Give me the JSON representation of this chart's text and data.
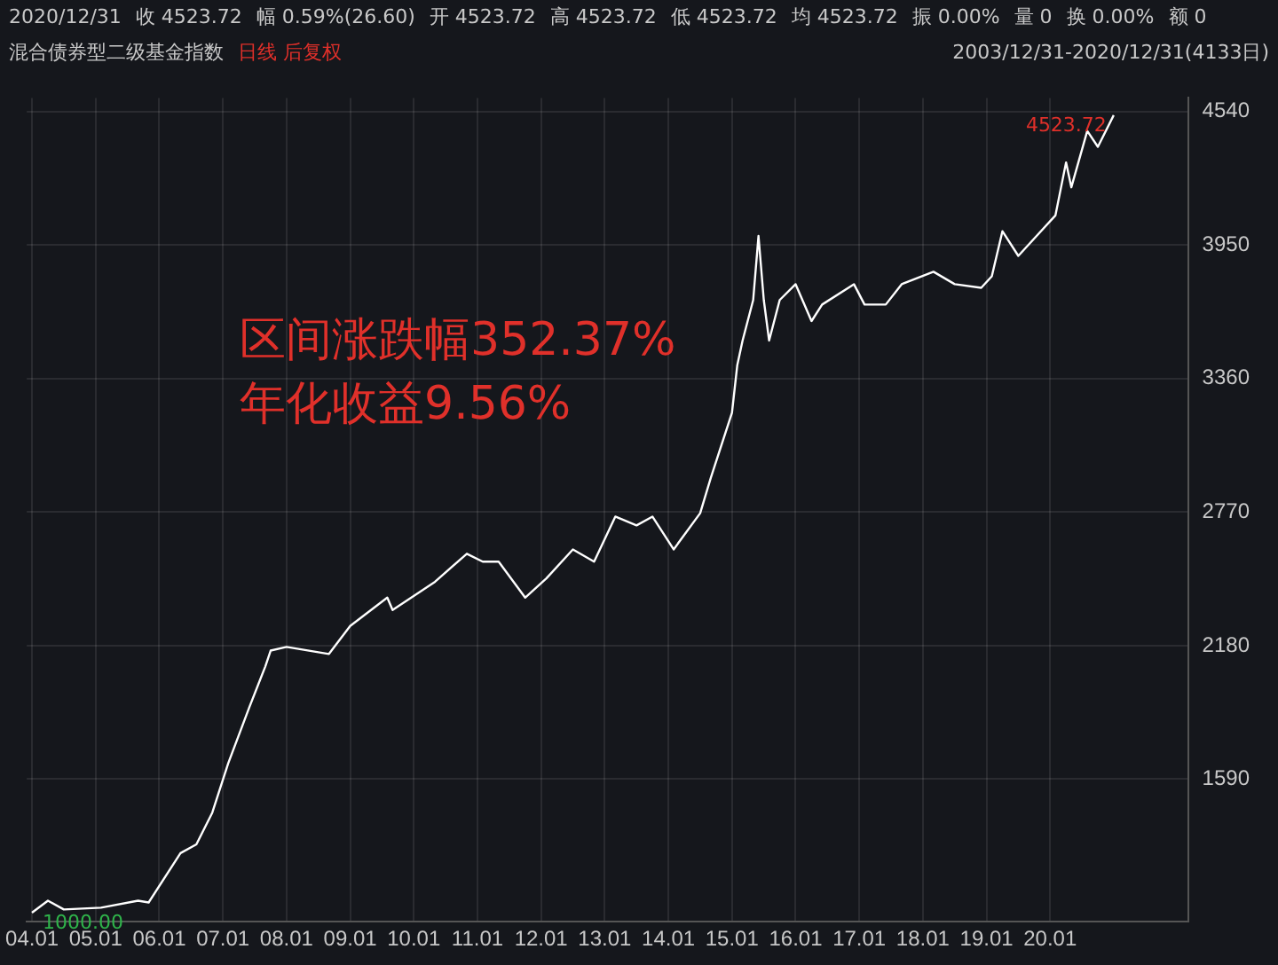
{
  "chart_data": {
    "type": "line",
    "title": "混合债券型二级基金指数",
    "subtitle": "日线 后复权",
    "annotations": [
      "2020/12/31",
      "收 4523.72",
      "幅 0.59%(26.60)",
      "开 4523.72",
      "高 4523.72",
      "低 4523.72",
      "均 4523.72",
      "振 0.00%",
      "量 0",
      "换 0.00%",
      "额 0",
      "2003/12/31-2020/12/31(4133日)",
      "区间涨跌幅352.37%",
      "年化收益9.56%",
      {
        "text": "4523.72",
        "x": "2020-12-31",
        "y": 4523.72
      },
      {
        "text": "1000.00",
        "x": "2003-12-31",
        "y": 1000
      }
    ],
    "x": [
      "2003-12-31",
      "2004-04",
      "2004-07",
      "2005-02",
      "2005-09",
      "2005-11",
      "2006-05",
      "2006-08",
      "2006-11",
      "2007-02",
      "2007-06",
      "2007-09",
      "2007-10",
      "2008-01",
      "2008-09",
      "2009-01",
      "2009-08",
      "2009-09",
      "2010-05",
      "2010-11",
      "2011-02",
      "2011-05",
      "2011-10",
      "2012-02",
      "2012-07",
      "2012-11",
      "2013-03",
      "2013-07",
      "2013-10",
      "2014-02",
      "2014-07",
      "2014-09",
      "2015-01",
      "2015-02",
      "2015-03",
      "2015-05",
      "2015-06",
      "2015-07",
      "2015-08",
      "2015-10",
      "2016-01",
      "2016-04",
      "2016-06",
      "2016-12",
      "2017-02",
      "2017-06",
      "2017-09",
      "2018-03",
      "2018-07",
      "2018-12",
      "2019-02",
      "2019-04",
      "2019-07",
      "2020-02",
      "2020-04",
      "2020-05",
      "2020-08",
      "2020-10",
      "2020-12-31"
    ],
    "series": [
      {
        "color": "#ffffff",
        "values": [
          1000,
          1053,
          1014,
          1022,
          1053,
          1045,
          1263,
          1302,
          1442,
          1660,
          1909,
          2088,
          2158,
          2174,
          2143,
          2267,
          2392,
          2337,
          2462,
          2586,
          2551,
          2551,
          2392,
          2477,
          2605,
          2551,
          2750,
          2711,
          2750,
          2605,
          2765,
          2921,
          3209,
          3419,
          3528,
          3707,
          3990,
          3707,
          3528,
          3707,
          3777,
          3614,
          3687,
          3777,
          3687,
          3687,
          3777,
          3832,
          3777,
          3761,
          3812,
          4011,
          3902,
          4081,
          4315,
          4205,
          4454,
          4384,
          4523.72
        ]
      }
    ],
    "xlim": [
      "2003-12",
      "2022-03"
    ],
    "xticks": [
      {
        "value": "2004-01",
        "label": "04.01"
      },
      {
        "value": "2005-01",
        "label": "05.01"
      },
      {
        "value": "2006-01",
        "label": "06.01"
      },
      {
        "value": "2007-01",
        "label": "07.01"
      },
      {
        "value": "2008-01",
        "label": "08.01"
      },
      {
        "value": "2009-01",
        "label": "09.01"
      },
      {
        "value": "2010-01",
        "label": "10.01"
      },
      {
        "value": "2011-01",
        "label": "11.01"
      },
      {
        "value": "2012-01",
        "label": "12.01"
      },
      {
        "value": "2013-01",
        "label": "13.01"
      },
      {
        "value": "2014-01",
        "label": "14.01"
      },
      {
        "value": "2015-01",
        "label": "15.01"
      },
      {
        "value": "2016-01",
        "label": "16.01"
      },
      {
        "value": "2017-01",
        "label": "17.01"
      },
      {
        "value": "2018-01",
        "label": "18.01"
      },
      {
        "value": "2019-01",
        "label": "19.01"
      },
      {
        "value": "2020-01",
        "label": "20.01"
      }
    ],
    "ylim": [
      960,
      4600
    ],
    "yticks": [
      1590,
      2180,
      2770,
      3360,
      3950,
      4540
    ],
    "grid": true,
    "legend": false,
    "marker": "none",
    "line_style": "solid"
  }
}
